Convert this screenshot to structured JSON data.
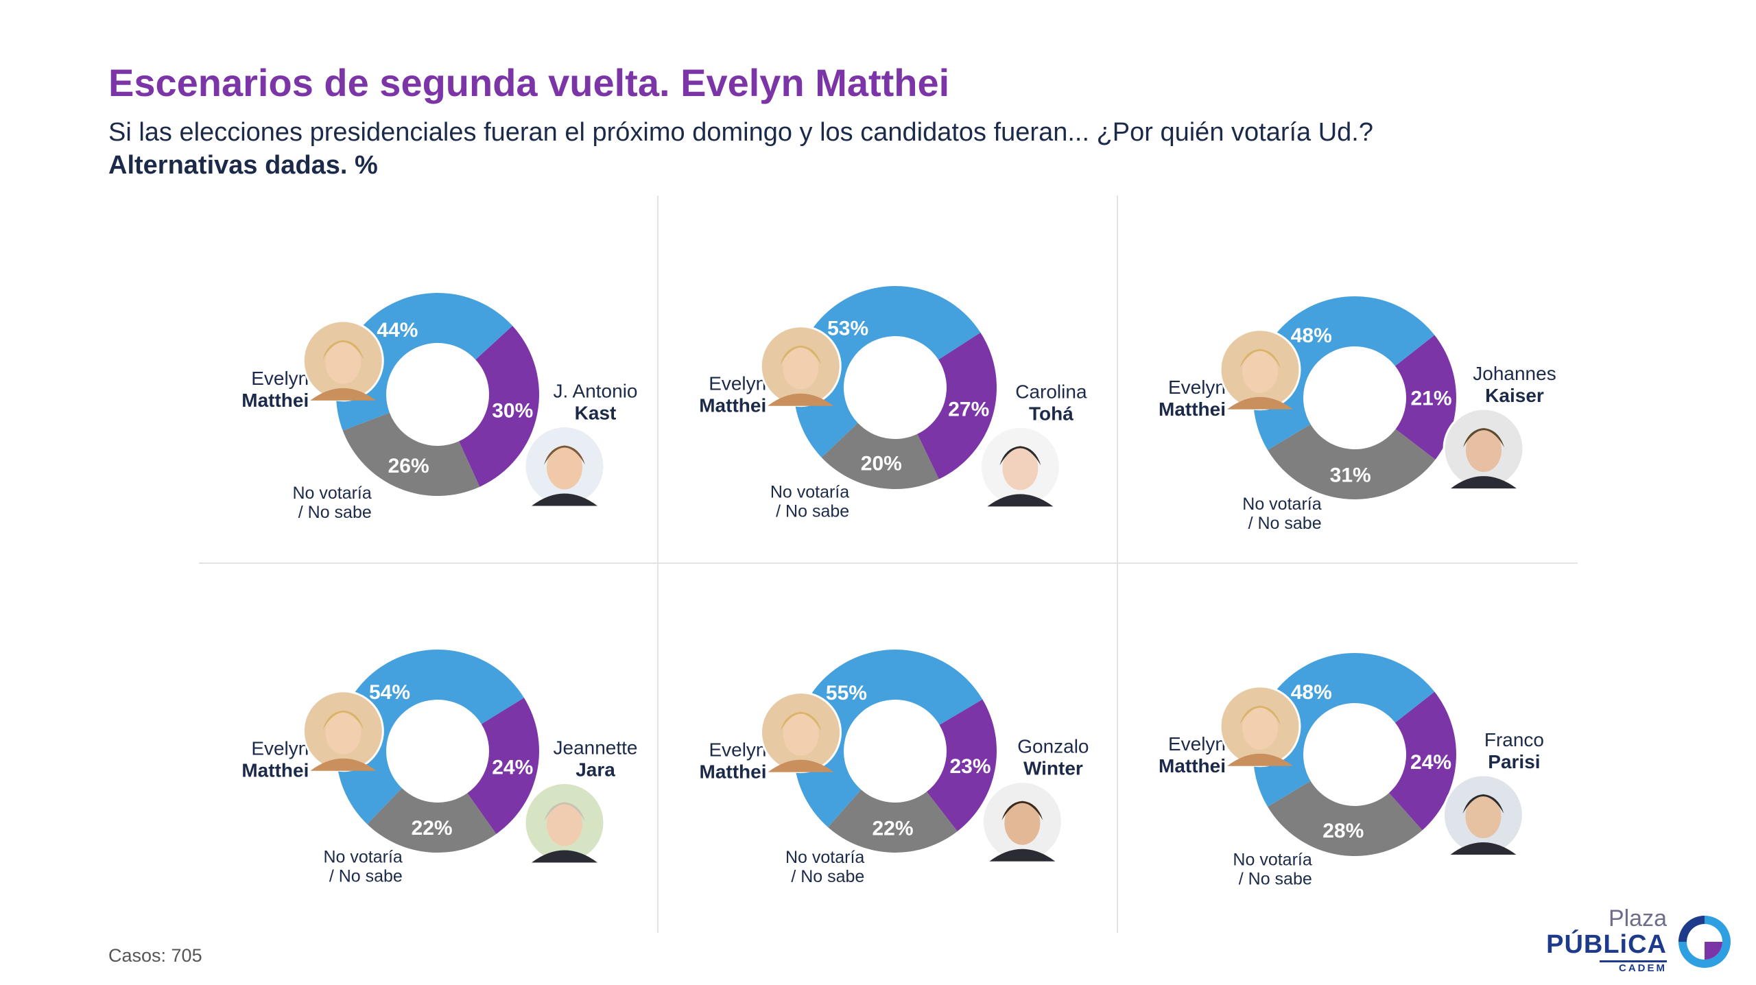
{
  "title": "Escenarios de segunda vuelta. Evelyn Matthei",
  "subtitle": "Si las elecciones presidenciales fueran el próximo domingo y los candidatos fueran... ¿Por quién votaría Ud.?",
  "subtitle2": "Alternativas dadas. %",
  "footer": {
    "cases": "Casos: 705"
  },
  "logo": {
    "line1": "Plaza",
    "line2": "PÚBLiCA",
    "line3": "CADEM"
  },
  "colors": {
    "matthei": "#44a1dd",
    "opponent": "#7b35a7",
    "no_vote": "#7f7f7f",
    "title": "#7b35a7",
    "text": "#1c2a4a"
  },
  "chart_data": [
    {
      "type": "pie",
      "series": [
        {
          "label_first": "Evelyn",
          "label_last": "Matthei",
          "value": 44
        },
        {
          "label_first": "J. Antonio",
          "label_last": "Kast",
          "value": 30
        },
        {
          "label_first": "No votaría",
          "label_last": "/ No sabe",
          "value": 26
        }
      ]
    },
    {
      "type": "pie",
      "series": [
        {
          "label_first": "Evelyn",
          "label_last": "Matthei",
          "value": 53
        },
        {
          "label_first": "Carolina",
          "label_last": "Tohá",
          "value": 27
        },
        {
          "label_first": "No votaría",
          "label_last": "/ No sabe",
          "value": 20
        }
      ]
    },
    {
      "type": "pie",
      "series": [
        {
          "label_first": "Evelyn",
          "label_last": "Matthei",
          "value": 48
        },
        {
          "label_first": "Johannes",
          "label_last": "Kaiser",
          "value": 21
        },
        {
          "label_first": "No votaría",
          "label_last": "/ No sabe",
          "value": 31
        }
      ]
    },
    {
      "type": "pie",
      "series": [
        {
          "label_first": "Evelyn",
          "label_last": "Matthei",
          "value": 54
        },
        {
          "label_first": "Jeannette",
          "label_last": "Jara",
          "value": 24
        },
        {
          "label_first": "No votaría",
          "label_last": "/ No sabe",
          "value": 22
        }
      ]
    },
    {
      "type": "pie",
      "series": [
        {
          "label_first": "Evelyn",
          "label_last": "Matthei",
          "value": 55
        },
        {
          "label_first": "Gonzalo",
          "label_last": "Winter",
          "value": 23
        },
        {
          "label_first": "No votaría",
          "label_last": "/ No sabe",
          "value": 22
        }
      ]
    },
    {
      "type": "pie",
      "series": [
        {
          "label_first": "Evelyn",
          "label_last": "Matthei",
          "value": 48
        },
        {
          "label_first": "Franco",
          "label_last": "Parisi",
          "value": 24
        },
        {
          "label_first": "No votaría",
          "label_last": "/ No sabe",
          "value": 28
        }
      ]
    }
  ]
}
